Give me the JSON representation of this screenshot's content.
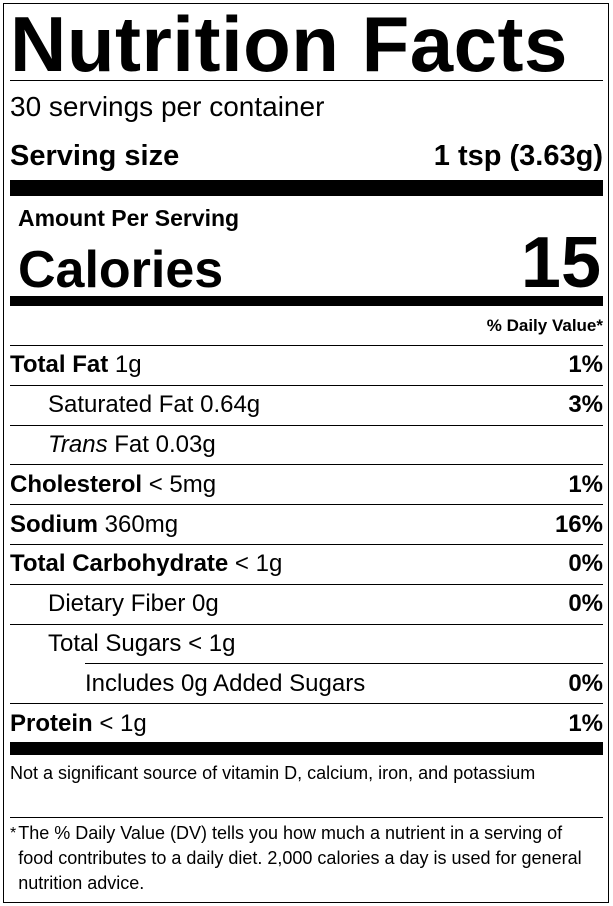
{
  "title": "Nutrition Facts",
  "servings": "30 servings per container",
  "serving_size": {
    "label": "Serving size",
    "value": "1 tsp (3.63g)"
  },
  "amount_per_serving": "Amount Per Serving",
  "calories": {
    "label": "Calories",
    "value": 15
  },
  "daily_value_header": "% Daily Value*",
  "nutrients": [
    {
      "name": "Total Fat",
      "amount": "1g",
      "daily_value": "1%"
    },
    {
      "name": "Saturated Fat",
      "amount": "0.64g",
      "daily_value": "3%"
    },
    {
      "name_italic": "Trans",
      "name": "Fat",
      "amount": "0.03g"
    },
    {
      "name": "Cholesterol",
      "amount": "< 5mg",
      "daily_value": "1%"
    },
    {
      "name": "Sodium",
      "amount": "360mg",
      "daily_value": "16%"
    },
    {
      "name": "Total Carbohydrate",
      "amount": "< 1g",
      "daily_value": "0%"
    },
    {
      "name": "Dietary Fiber",
      "amount": "0g",
      "daily_value": "0%"
    },
    {
      "name": "Total Sugars",
      "amount": "< 1g"
    },
    {
      "name": "Includes 0g Added Sugars",
      "daily_value": "0%"
    },
    {
      "name": "Protein",
      "amount": "< 1g",
      "daily_value": "1%"
    }
  ],
  "note": "Not a significant source of vitamin D, calcium, iron, and potassium",
  "footnote": {
    "marker": "*",
    "text": "The % Daily Value (DV) tells you how much a nutrient in a serving of food contributes to a daily diet. 2,000 calories a day is used for general nutrition advice."
  }
}
